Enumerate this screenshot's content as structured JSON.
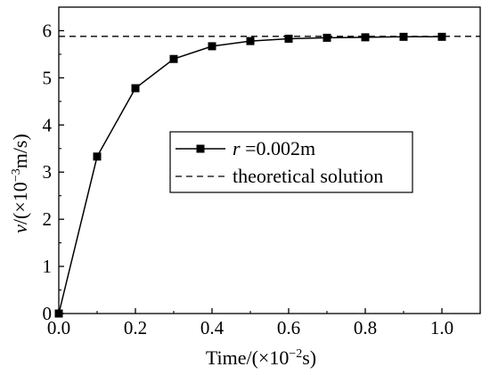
{
  "chart_data": {
    "type": "line",
    "x": [
      0.0,
      0.1,
      0.2,
      0.3,
      0.4,
      0.5,
      0.6,
      0.7,
      0.8,
      0.9,
      1.0
    ],
    "series": [
      {
        "name_var": "r",
        "name_rest": " =0.002m",
        "values": [
          0.0,
          3.33,
          4.78,
          5.4,
          5.67,
          5.78,
          5.83,
          5.85,
          5.86,
          5.87,
          5.87
        ],
        "marker": "square",
        "line_style": "solid",
        "color": "#000000"
      },
      {
        "name": "theoretical solution",
        "constant_value": 5.88,
        "line_style": "dashed",
        "color": "#000000"
      }
    ],
    "xlim": [
      0.0,
      1.1
    ],
    "ylim": [
      0,
      6.5
    ],
    "x_ticks": [
      "0.0",
      "0.2",
      "0.4",
      "0.6",
      "0.8",
      "1.0"
    ],
    "y_ticks": [
      "0",
      "1",
      "2",
      "3",
      "4",
      "5",
      "6"
    ],
    "xlabel": {
      "base": "Time/(×10",
      "exp": "−2",
      "tail": "s)"
    },
    "ylabel": {
      "var": "v",
      "base": "/(×10",
      "exp": "−3",
      "tail": "m/s)"
    },
    "legend_position": "center-right",
    "grid": false
  }
}
